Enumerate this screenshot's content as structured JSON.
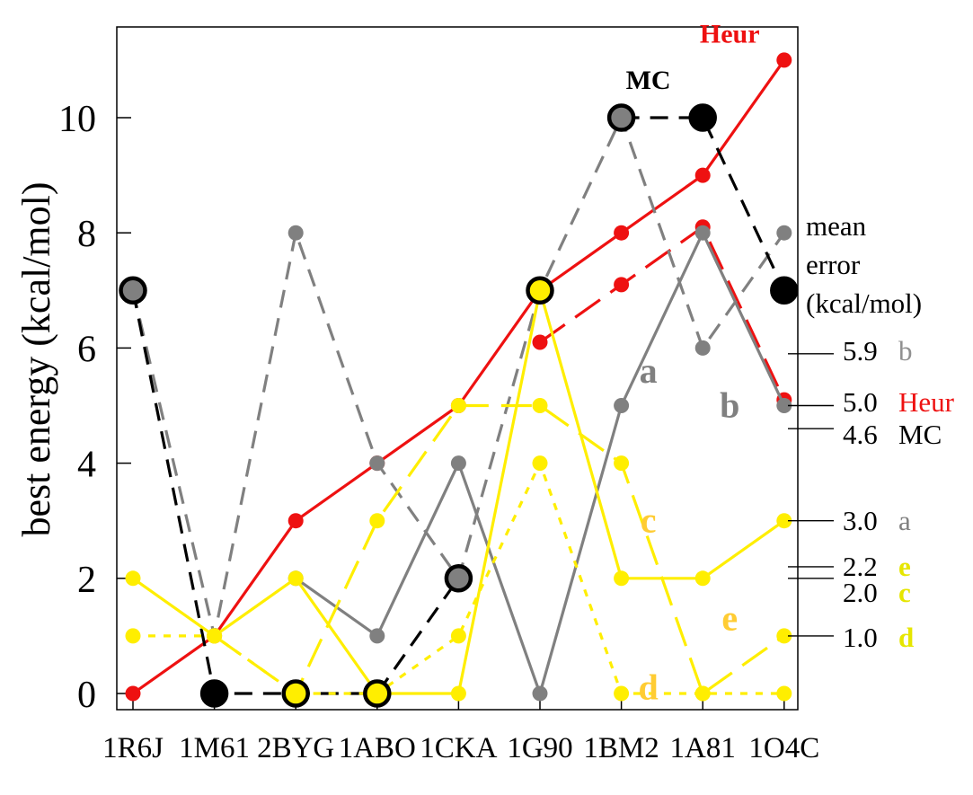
{
  "chart_data": {
    "type": "line",
    "title": "",
    "xlabel": "",
    "ylabel": "best energy (kcal/mol)",
    "categories": [
      "1R6J",
      "1M61",
      "2BYG",
      "1ABO",
      "1CKA",
      "1G90",
      "1BM2",
      "1A81",
      "1O4C"
    ],
    "yticks": [
      "0",
      "2",
      "4",
      "6",
      "8",
      "10"
    ],
    "ylim": [
      0,
      11.5
    ],
    "grid": false,
    "series": [
      {
        "name": "Heur",
        "color": "#ee1111",
        "dash": "solid",
        "marker": "small",
        "values": [
          0,
          1,
          3,
          4,
          5,
          7,
          8,
          9,
          11
        ]
      },
      {
        "name": "",
        "color": "#ee1111",
        "dash": "long",
        "marker": "small",
        "values": [
          null,
          null,
          null,
          null,
          null,
          6.1,
          7.1,
          8.1,
          5.1
        ]
      },
      {
        "name": "a",
        "color": "#808080",
        "dash": "solid",
        "marker": "small",
        "values": [
          null,
          null,
          2,
          1,
          4,
          0,
          5,
          8,
          5
        ]
      },
      {
        "name": "b",
        "color": "#808080",
        "dash": "medium",
        "marker": "small",
        "values": [
          7,
          1,
          8,
          4,
          2,
          7,
          10,
          6,
          8
        ]
      },
      {
        "name": "MC",
        "color": "#000000",
        "dash": "medium",
        "marker": "big",
        "values": [
          7,
          0,
          0,
          0,
          2,
          null,
          10,
          10,
          7
        ]
      },
      {
        "name": "c",
        "color": "#ffee00",
        "dash": "solid",
        "marker": "small",
        "values": [
          2,
          1,
          2,
          0,
          0,
          7,
          2,
          2,
          3
        ]
      },
      {
        "name": "e",
        "color": "#ffee00",
        "dash": "long",
        "marker": "small",
        "values": [
          null,
          1,
          0,
          3,
          5,
          5,
          4,
          0,
          1
        ]
      },
      {
        "name": "d",
        "color": "#ffee00",
        "dash": "short",
        "marker": "small",
        "values": [
          1,
          1,
          0,
          0,
          1,
          4,
          0,
          0,
          0
        ]
      }
    ],
    "big_markers": [
      {
        "x": "1R6J",
        "y": 7,
        "fill": "#808080"
      },
      {
        "x": "1M61",
        "y": 0,
        "fill": "#000000"
      },
      {
        "x": "2BYG",
        "y": 0,
        "fill": "#ffee00"
      },
      {
        "x": "1ABO",
        "y": 0,
        "fill": "#ffee00"
      },
      {
        "x": "1CKA",
        "y": 2,
        "fill": "#808080"
      },
      {
        "x": "1G90",
        "y": 7,
        "fill": "#ffee00"
      },
      {
        "x": "1BM2",
        "y": 10,
        "fill": "#808080"
      },
      {
        "x": "1A81",
        "y": 10,
        "fill": "#000000"
      },
      {
        "x": "1O4C",
        "y": 7,
        "fill": "#000000"
      }
    ],
    "series_labels": [
      {
        "text": "Heur",
        "color": "#ee1111",
        "x": "1A81",
        "y": 11.3,
        "bold": true
      },
      {
        "text": "MC",
        "color": "#000000",
        "x": "1BM2",
        "y": 10.5,
        "bold": true
      },
      {
        "text": "a",
        "color": "#808080",
        "x": "1BM2",
        "y": 5.4,
        "bold": true
      },
      {
        "text": "b",
        "color": "#808080",
        "x": "1A81",
        "y": 4.8,
        "bold": true
      },
      {
        "text": "c",
        "color": "#ffcc33",
        "x": "1BM2",
        "y": 2.8,
        "bold": true
      },
      {
        "text": "e",
        "color": "#ffcc33",
        "x": "1A81",
        "y": 1.1,
        "bold": true
      },
      {
        "text": "d",
        "color": "#ffcc33",
        "x": "1BM2",
        "y": -0.1,
        "bold": true
      }
    ],
    "legend_title": [
      "mean",
      "error",
      "(kcal/mol)"
    ],
    "mean_errors": [
      {
        "value": 5.9,
        "label": "5.9",
        "name": "b",
        "name_color": "#909090",
        "bold": false
      },
      {
        "value": 5.0,
        "label": "5.0",
        "name": "Heur",
        "name_color": "#ee1111",
        "bold": false
      },
      {
        "value": 4.6,
        "label": "4.6",
        "name": "MC",
        "name_color": "#000000",
        "bold": false
      },
      {
        "value": 3.0,
        "label": "3.0",
        "name": "a",
        "name_color": "#808080",
        "bold": false
      },
      {
        "value": 2.2,
        "label": "2.2",
        "name": "e",
        "name_color": "#e6e600",
        "bold": true
      },
      {
        "value": 2.0,
        "label": "2.0",
        "name": "c",
        "name_color": "#e6e600",
        "bold": true
      },
      {
        "value": 1.0,
        "label": "1.0",
        "name": "d",
        "name_color": "#e6e600",
        "bold": true
      }
    ]
  }
}
